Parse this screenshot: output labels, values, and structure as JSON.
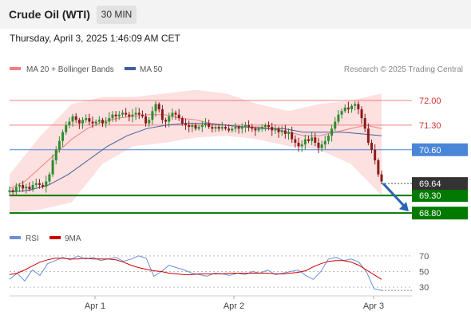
{
  "header": {
    "title": "Crude Oil (WTI)",
    "timeframe": "30 MIN",
    "datetime": "Thursday, April 3, 2025 1:46:09 AM CET"
  },
  "legend": {
    "ma20_label": "MA 20 + Bollinger Bands",
    "ma50_label": "MA 50",
    "credit": "Research © 2025 Trading Central",
    "rsi_label": "RSI",
    "rsi_ma_label": "9MA"
  },
  "colors": {
    "up_candle": "#2e8b2e",
    "down_candle": "#8b1a1a",
    "ma20": "#f08080",
    "ma50": "#3f5f9f",
    "bollinger_fill": "#fde0e0",
    "resistance": "#f08080",
    "pivot": "#4a86d8",
    "support": "#007a00",
    "last_price": "#333333",
    "forecast_arrow": "#2a63b0",
    "rsi": "#6b8fd6",
    "rsi_ma": "#cc0000"
  },
  "chart_data": [
    {
      "type": "candlestick",
      "title": "Crude Oil (WTI)",
      "timeframe": "30 MIN",
      "x_ticks": [
        "Apr 1",
        "Apr 2",
        "Apr 3"
      ],
      "y_range": [
        68.6,
        72.5
      ],
      "levels": [
        {
          "value": 72.0,
          "label": "72.00",
          "kind": "resistance"
        },
        {
          "value": 71.3,
          "label": "71.30",
          "kind": "resistance"
        },
        {
          "value": 70.6,
          "label": "70.60",
          "kind": "pivot"
        },
        {
          "value": 69.3,
          "label": "69.30",
          "kind": "support"
        },
        {
          "value": 68.8,
          "label": "68.80",
          "kind": "support"
        }
      ],
      "last_price": {
        "value": 69.64,
        "label": "69.64"
      },
      "close_series": [
        69.45,
        69.4,
        69.55,
        69.6,
        69.5,
        69.55,
        69.48,
        69.6,
        69.65,
        69.6,
        69.55,
        69.7,
        69.9,
        70.3,
        70.6,
        70.85,
        71.1,
        71.3,
        71.4,
        71.55,
        71.45,
        71.35,
        71.45,
        71.5,
        71.4,
        71.35,
        71.4,
        71.45,
        71.35,
        71.4,
        71.5,
        71.6,
        71.55,
        71.6,
        71.65,
        71.6,
        71.55,
        71.6,
        71.65,
        71.6,
        71.55,
        71.35,
        71.45,
        71.7,
        71.9,
        71.75,
        71.45,
        71.4,
        71.55,
        71.65,
        71.6,
        71.5,
        71.35,
        71.3,
        71.25,
        71.3,
        71.2,
        71.25,
        71.3,
        71.35,
        71.25,
        71.2,
        71.25,
        71.2,
        71.25,
        71.2,
        71.15,
        71.2,
        71.25,
        71.2,
        71.25,
        71.3,
        71.25,
        71.2,
        71.15,
        71.2,
        71.25,
        71.3,
        71.25,
        71.15,
        71.2,
        71.1,
        71.15,
        71.05,
        71.1,
        70.9,
        70.8,
        70.7,
        70.75,
        70.9,
        70.85,
        70.95,
        70.8,
        70.65,
        70.75,
        70.85,
        71.0,
        71.2,
        71.4,
        71.6,
        71.7,
        71.8,
        71.75,
        71.85,
        71.9,
        71.75,
        71.5,
        71.2,
        70.8,
        70.6,
        70.3,
        69.9,
        69.7
      ],
      "bollinger": {
        "upper": [
          69.9,
          71.0,
          71.9,
          72.1,
          72.1,
          72.2,
          72.3,
          72.2,
          71.9,
          71.7,
          71.9,
          72.0,
          72.2
        ],
        "lower": [
          68.8,
          68.9,
          69.1,
          70.2,
          70.7,
          70.8,
          70.95,
          71.0,
          70.9,
          70.7,
          70.6,
          70.2,
          69.3
        ]
      },
      "ma20": [
        69.5,
        69.7,
        70.1,
        70.5,
        70.9,
        71.2,
        71.4,
        71.5,
        71.55,
        71.6,
        71.6,
        71.5,
        71.45,
        71.35,
        71.3,
        71.25,
        71.25,
        71.2,
        71.1,
        71.0,
        71.0,
        71.1,
        71.2,
        71.3,
        71.2
      ],
      "ma50": [
        69.4,
        69.45,
        69.6,
        69.9,
        70.3,
        70.7,
        71.0,
        71.2,
        71.3,
        71.35,
        71.35,
        71.3,
        71.25,
        71.2,
        71.2,
        71.1,
        71.1,
        71.1,
        71.05,
        71.0
      ],
      "forecast": {
        "from": 69.64,
        "to": 68.8,
        "direction": "down"
      }
    },
    {
      "type": "line",
      "title": "RSI",
      "y_ticks": [
        30,
        50,
        70
      ],
      "y_range": [
        20,
        80
      ],
      "series": [
        {
          "name": "RSI",
          "values": [
            40,
            48,
            38,
            52,
            45,
            60,
            64,
            68,
            65,
            70,
            66,
            68,
            64,
            66,
            68,
            63,
            66,
            70,
            67,
            44,
            50,
            58,
            55,
            52,
            48,
            46,
            44,
            48,
            47,
            45,
            48,
            46,
            50,
            48,
            52,
            46,
            48,
            50,
            52,
            45,
            40,
            50,
            66,
            68,
            64,
            66,
            62,
            50,
            28,
            26
          ]
        },
        {
          "name": "9MA",
          "values": [
            46,
            48,
            52,
            57,
            62,
            65,
            67,
            67,
            66,
            66,
            67,
            66,
            66,
            66,
            65,
            62,
            58,
            55,
            53,
            51,
            50,
            48,
            47,
            46,
            46,
            47,
            47,
            47,
            47,
            48,
            48,
            48,
            48,
            48,
            48,
            47,
            47,
            48,
            49,
            51,
            56,
            60,
            63,
            64,
            64,
            62,
            58,
            52,
            46,
            40
          ]
        }
      ]
    }
  ]
}
